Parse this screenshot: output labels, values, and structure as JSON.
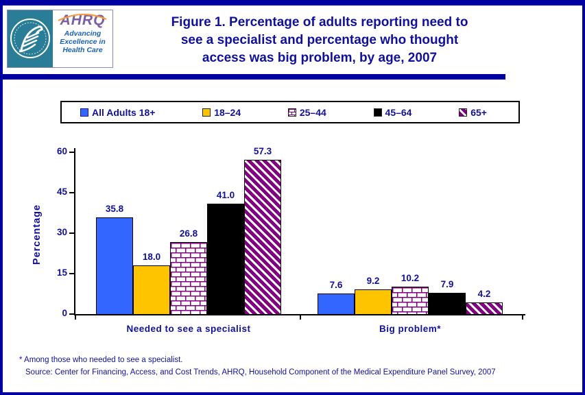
{
  "header": {
    "title_lines": [
      "Figure 1. Percentage of adults reporting need to",
      "see a specialist and percentage who thought",
      "access was big problem, by age, 2007"
    ],
    "logo": {
      "org_abbr": "AHRQ",
      "tagline_lines": [
        "Advancing",
        "Excellence in",
        "Health Care"
      ]
    }
  },
  "legend": {
    "items": [
      {
        "label": "All Adults 18+",
        "swatch": "solid-blue"
      },
      {
        "label": "18–24",
        "swatch": "solid-yellow"
      },
      {
        "label": "25–44",
        "swatch": "brick"
      },
      {
        "label": "45–64",
        "swatch": "solid-black"
      },
      {
        "label": "65+",
        "swatch": "stripe-purple"
      }
    ]
  },
  "chart_data": {
    "type": "bar",
    "categories": [
      "Needed to see a specialist",
      "Big problem*"
    ],
    "series": [
      {
        "name": "All Adults 18+",
        "style": "solid-blue",
        "values": [
          35.8,
          7.6
        ]
      },
      {
        "name": "18–24",
        "style": "solid-yellow",
        "values": [
          18.0,
          9.2
        ]
      },
      {
        "name": "25–44",
        "style": "brick",
        "values": [
          26.8,
          10.2
        ]
      },
      {
        "name": "45–64",
        "style": "solid-black",
        "values": [
          41.0,
          7.9
        ]
      },
      {
        "name": "65+",
        "style": "stripe-purple",
        "values": [
          57.3,
          4.2
        ]
      }
    ],
    "ylabel": "Percentage",
    "ylim": [
      0,
      60
    ],
    "yticks": [
      0,
      15,
      30,
      45,
      60
    ],
    "grid": false,
    "legend_position": "top",
    "value_labels": true
  },
  "colors": {
    "accent_navy": "#0000A0",
    "text_navy": "#10109C",
    "bar_blue": "#3366FF",
    "bar_yellow": "#FFC400",
    "bar_black": "#000000",
    "pattern_purple": "#800080",
    "logo_teal": "#2A7D96",
    "ahrq_purple": "#7B5CA6",
    "ahrq_orange": "#F49E3F",
    "tagline_blue": "#1B62B5"
  },
  "footnotes": {
    "asterisk": "* Among those who needed to see a specialist.",
    "source": "Source: Center for Financing, Access, and Cost Trends, AHRQ, Household Component of the Medical Expenditure Panel Survey, 2007"
  }
}
